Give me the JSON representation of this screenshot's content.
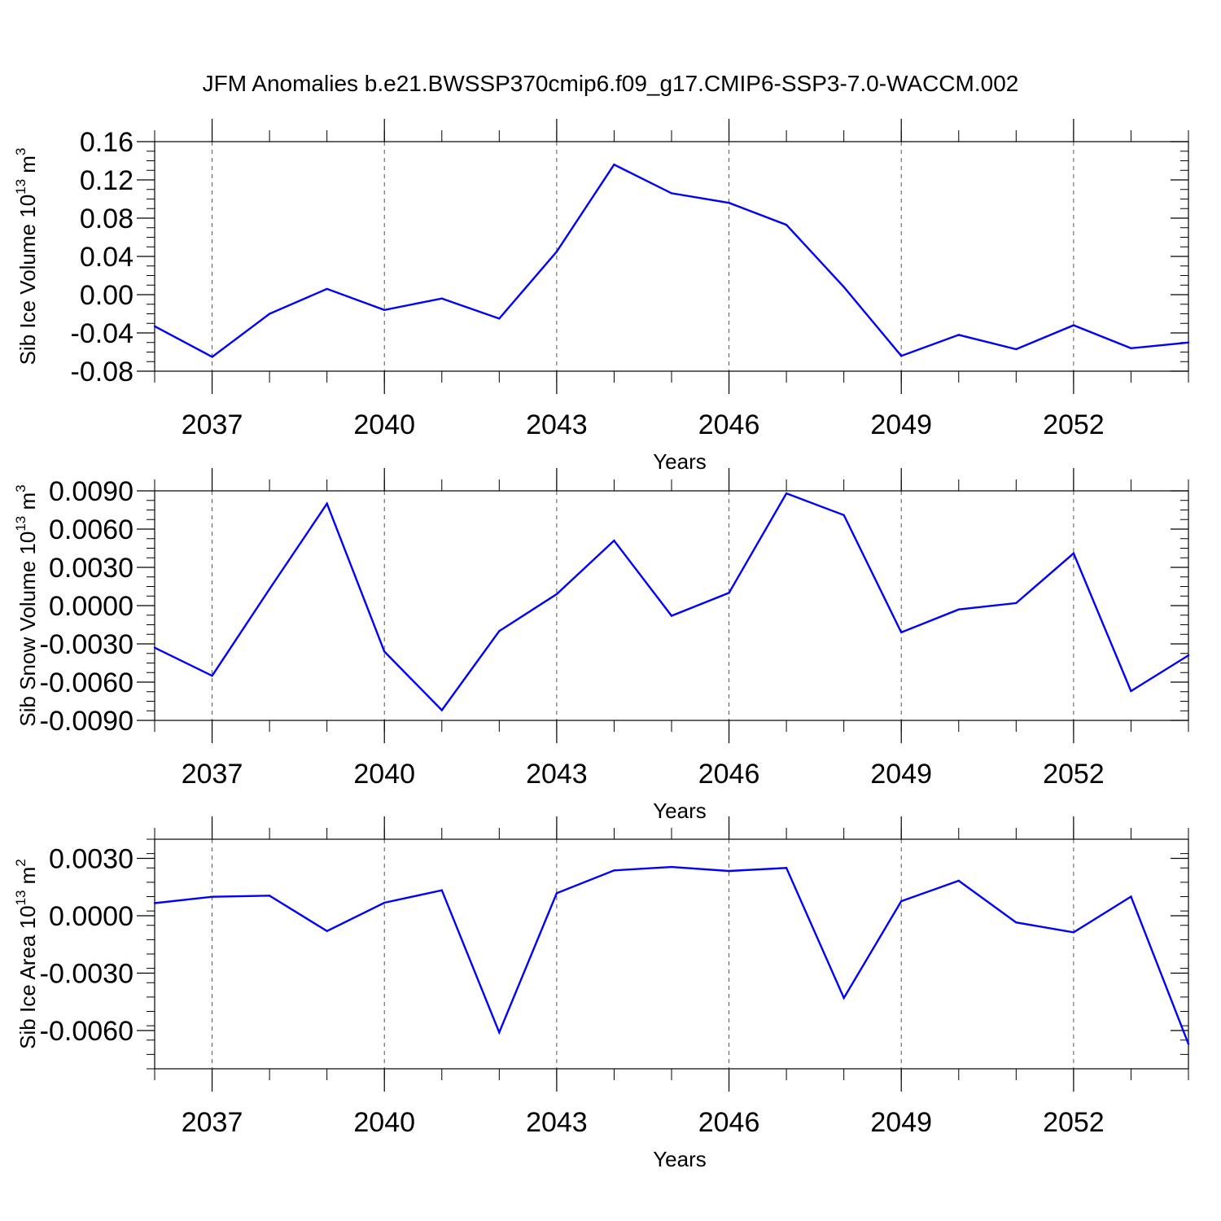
{
  "figure": {
    "title": "JFM Anomalies b.e21.BWSSP370cmip6.f09_g17.CMIP6-SSP3-7.0-WACCM.002"
  },
  "chart_data": [
    {
      "type": "line",
      "title": "",
      "xlabel": "Years",
      "ylabel": {
        "main": "Sib Ice Volume 10",
        "exp": "13",
        "unit": " m",
        "unit_exp": "3"
      },
      "x": [
        2036,
        2037,
        2038,
        2039,
        2040,
        2041,
        2042,
        2043,
        2044,
        2045,
        2046,
        2047,
        2048,
        2049,
        2050,
        2051,
        2052,
        2053,
        2054
      ],
      "series": [
        {
          "values": [
            -0.033,
            -0.065,
            -0.02,
            0.006,
            -0.016,
            -0.004,
            -0.025,
            0.045,
            0.136,
            0.106,
            0.096,
            0.073,
            0.008,
            -0.064,
            -0.042,
            -0.057,
            -0.032,
            -0.056,
            -0.05
          ],
          "color": "#0000ff"
        }
      ],
      "xlim": [
        2036,
        2054
      ],
      "ylim": [
        -0.08,
        0.16
      ],
      "y_major_ticks": [
        -0.08,
        -0.04,
        0.0,
        0.04,
        0.08,
        0.12,
        0.16
      ],
      "y_tick_labels": [
        "-0.08",
        "-0.04",
        "0.00",
        "0.04",
        "0.08",
        "0.12",
        "0.16"
      ],
      "x_major_ticks": [
        2037,
        2040,
        2043,
        2046,
        2049,
        2052
      ],
      "x_tick_labels": [
        "2037",
        "2040",
        "2043",
        "2046",
        "2049",
        "2052"
      ],
      "grid": "dashed vertical at major x ticks"
    },
    {
      "type": "line",
      "title": "",
      "xlabel": "Years",
      "ylabel": {
        "main": "Sib Snow Volume 10",
        "exp": "13",
        "unit": " m",
        "unit_exp": "3"
      },
      "x": [
        2036,
        2037,
        2038,
        2039,
        2040,
        2041,
        2042,
        2043,
        2044,
        2045,
        2046,
        2047,
        2048,
        2049,
        2050,
        2051,
        2052,
        2053,
        2054
      ],
      "series": [
        {
          "values": [
            -0.0033,
            -0.0055,
            0.0013,
            0.008,
            -0.0036,
            -0.0082,
            -0.002,
            0.0009,
            0.0051,
            -0.0008,
            0.001,
            0.0088,
            0.0071,
            -0.0021,
            -0.0003,
            0.0002,
            0.0041,
            -0.0067,
            -0.0039
          ],
          "color": "#0000ff"
        }
      ],
      "xlim": [
        2036,
        2054
      ],
      "ylim": [
        -0.009,
        0.009
      ],
      "y_major_ticks": [
        -0.009,
        -0.006,
        -0.003,
        0.0,
        0.003,
        0.006,
        0.009
      ],
      "y_tick_labels": [
        "-0.0090",
        "-0.0060",
        "-0.0030",
        "0.0000",
        "0.0030",
        "0.0060",
        "0.0090"
      ],
      "x_major_ticks": [
        2037,
        2040,
        2043,
        2046,
        2049,
        2052
      ],
      "x_tick_labels": [
        "2037",
        "2040",
        "2043",
        "2046",
        "2049",
        "2052"
      ],
      "grid": "dashed vertical at major x ticks"
    },
    {
      "type": "line",
      "title": "",
      "xlabel": "Years",
      "ylabel": {
        "main": "Sib Ice Area 10",
        "exp": "13",
        "unit": " m",
        "unit_exp": "2"
      },
      "x": [
        2036,
        2037,
        2038,
        2039,
        2040,
        2041,
        2042,
        2043,
        2044,
        2045,
        2046,
        2047,
        2048,
        2049,
        2050,
        2051,
        2052,
        2053,
        2054
      ],
      "series": [
        {
          "values": [
            0.00066,
            0.00099,
            0.00105,
            -0.0008,
            0.00068,
            0.00133,
            -0.0061,
            0.00118,
            0.00237,
            0.00255,
            0.00234,
            0.0025,
            -0.0043,
            0.00076,
            0.00183,
            -0.00035,
            -0.00087,
            0.001,
            -0.0067
          ],
          "color": "#0000ff"
        }
      ],
      "xlim": [
        2036,
        2054
      ],
      "ylim": [
        -0.008,
        0.004
      ],
      "y_major_ticks": [
        -0.006,
        -0.003,
        0.0,
        0.003
      ],
      "y_tick_labels": [
        "-0.0060",
        "-0.0030",
        "0.0000",
        "0.0030"
      ],
      "x_major_ticks": [
        2037,
        2040,
        2043,
        2046,
        2049,
        2052
      ],
      "x_tick_labels": [
        "2037",
        "2040",
        "2043",
        "2046",
        "2049",
        "2052"
      ],
      "grid": "dashed vertical at major x ticks"
    }
  ]
}
